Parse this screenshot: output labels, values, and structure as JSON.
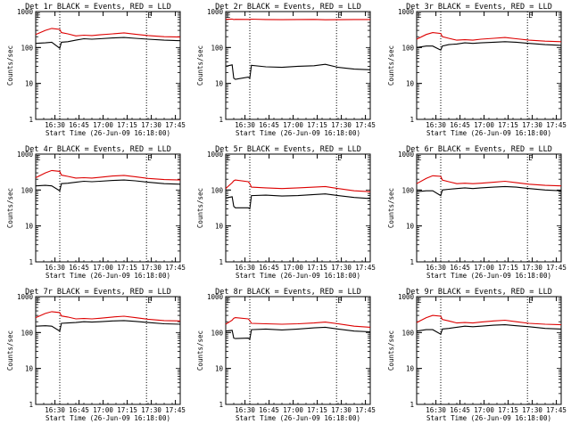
{
  "chart_data": [
    {
      "type": "line",
      "title": "Det 1r BLACK = Events, RED = LLD",
      "xlabel": "Start Time (26-Jun-09 16:18:00)",
      "ylabel": "Counts/sec",
      "x_tick_labels": [
        "16:30",
        "16:45",
        "17:00",
        "17:15",
        "17:30",
        "17:45"
      ],
      "y_tick_labels": [
        "1",
        "10",
        "100",
        "1000"
      ],
      "yscale": "log",
      "ylim": [
        1,
        1000
      ],
      "xlim_minutes_after_start": [
        0,
        90
      ],
      "annotation": "E",
      "event_lines_minutes_after_start": [
        15,
        69
      ],
      "x_minutes": [
        0,
        6,
        10,
        15,
        16,
        20,
        25,
        30,
        35,
        40,
        48,
        55,
        62,
        70,
        80,
        90
      ],
      "series": [
        {
          "name": "BLACK = Events",
          "color": "#000000",
          "values": [
            130,
            135,
            140,
            95,
            140,
            145,
            160,
            175,
            170,
            175,
            185,
            190,
            180,
            170,
            160,
            155
          ]
        },
        {
          "name": "RED = LLD",
          "color": "#dd0000",
          "values": [
            230,
            300,
            340,
            320,
            260,
            240,
            210,
            220,
            215,
            225,
            240,
            255,
            235,
            215,
            200,
            195
          ]
        }
      ]
    },
    {
      "type": "line",
      "title": "Det 2r BLACK = Events, RED = LLD",
      "xlabel": "Start Time (26-Jun-09 16:18:00)",
      "ylabel": "Counts/sec",
      "x_tick_labels": [
        "16:30",
        "16:45",
        "17:00",
        "17:15",
        "17:30",
        "17:45"
      ],
      "y_tick_labels": [
        "1",
        "10",
        "100",
        "1000"
      ],
      "yscale": "log",
      "ylim": [
        1,
        1000
      ],
      "xlim_minutes_after_start": [
        0,
        90
      ],
      "annotation": "E",
      "event_lines_minutes_after_start": [
        15,
        69
      ],
      "x_minutes": [
        0,
        4,
        5,
        6,
        14,
        15,
        16,
        25,
        35,
        45,
        55,
        62,
        70,
        80,
        90
      ],
      "series": [
        {
          "name": "BLACK = Events",
          "color": "#000000",
          "values": [
            30,
            33,
            14,
            13,
            15,
            14,
            32,
            29,
            28,
            30,
            31,
            34,
            28,
            25,
            24
          ]
        },
        {
          "name": "RED = LLD",
          "color": "#dd0000",
          "values": [
            610,
            620,
            600,
            610,
            605,
            600,
            615,
            600,
            595,
            600,
            605,
            590,
            595,
            600,
            600
          ]
        }
      ]
    },
    {
      "type": "line",
      "title": "Det 3r BLACK = Events, RED = LLD",
      "xlabel": "Start Time (26-Jun-09 16:18:00)",
      "ylabel": "Counts/sec",
      "x_tick_labels": [
        "16:30",
        "16:45",
        "17:00",
        "17:15",
        "17:30",
        "17:45"
      ],
      "y_tick_labels": [
        "1",
        "10",
        "100",
        "1000"
      ],
      "yscale": "log",
      "ylim": [
        1,
        1000
      ],
      "xlim_minutes_after_start": [
        0,
        90
      ],
      "annotation": "E",
      "event_lines_minutes_after_start": [
        15,
        69
      ],
      "x_minutes": [
        0,
        6,
        10,
        15,
        16,
        20,
        25,
        30,
        35,
        40,
        48,
        55,
        62,
        70,
        80,
        90
      ],
      "series": [
        {
          "name": "BLACK = Events",
          "color": "#000000",
          "values": [
            100,
            110,
            110,
            85,
            110,
            120,
            125,
            135,
            130,
            135,
            140,
            145,
            140,
            130,
            120,
            115
          ]
        },
        {
          "name": "RED = LLD",
          "color": "#dd0000",
          "values": [
            170,
            230,
            260,
            245,
            200,
            180,
            160,
            165,
            160,
            170,
            180,
            190,
            175,
            160,
            150,
            145
          ]
        }
      ]
    },
    {
      "type": "line",
      "title": "Det 4r BLACK = Events, RED = LLD",
      "xlabel": "Start Time (26-Jun-09 16:18:00)",
      "ylabel": "Counts/sec",
      "x_tick_labels": [
        "16:30",
        "16:45",
        "17:00",
        "17:15",
        "17:30",
        "17:45"
      ],
      "y_tick_labels": [
        "1",
        "10",
        "100",
        "1000"
      ],
      "yscale": "log",
      "ylim": [
        1,
        1000
      ],
      "xlim_minutes_after_start": [
        0,
        90
      ],
      "annotation": "E",
      "event_lines_minutes_after_start": [
        15,
        69
      ],
      "x_minutes": [
        0,
        6,
        10,
        15,
        16,
        20,
        25,
        30,
        35,
        40,
        48,
        55,
        62,
        70,
        80,
        90
      ],
      "series": [
        {
          "name": "BLACK = Events",
          "color": "#000000",
          "values": [
            130,
            135,
            130,
            95,
            150,
            155,
            165,
            175,
            170,
            175,
            185,
            190,
            180,
            165,
            150,
            145
          ]
        },
        {
          "name": "RED = LLD",
          "color": "#dd0000",
          "values": [
            220,
            300,
            350,
            330,
            260,
            240,
            215,
            220,
            215,
            225,
            245,
            255,
            235,
            210,
            195,
            190
          ]
        }
      ]
    },
    {
      "type": "line",
      "title": "Det 5r BLACK = Events, RED = LLD",
      "xlabel": "Start Time (26-Jun-09 16:18:00)",
      "ylabel": "Counts/sec",
      "x_tick_labels": [
        "16:30",
        "16:45",
        "17:00",
        "17:15",
        "17:30",
        "17:45"
      ],
      "y_tick_labels": [
        "1",
        "10",
        "100",
        "1000"
      ],
      "yscale": "log",
      "ylim": [
        1,
        1000
      ],
      "xlim_minutes_after_start": [
        0,
        90
      ],
      "annotation": "E",
      "event_lines_minutes_after_start": [
        15,
        69
      ],
      "x_minutes": [
        0,
        4,
        5,
        6,
        14,
        15,
        16,
        25,
        35,
        45,
        55,
        62,
        70,
        80,
        90
      ],
      "series": [
        {
          "name": "BLACK = Events",
          "color": "#000000",
          "values": [
            60,
            65,
            35,
            32,
            32,
            30,
            70,
            72,
            68,
            70,
            75,
            78,
            70,
            62,
            58
          ]
        },
        {
          "name": "RED = LLD",
          "color": "#dd0000",
          "values": [
            110,
            160,
            180,
            190,
            170,
            150,
            120,
            115,
            110,
            115,
            120,
            125,
            110,
            95,
            90
          ]
        }
      ]
    },
    {
      "type": "line",
      "title": "Det 6r BLACK = Events, RED = LLD",
      "xlabel": "Start Time (26-Jun-09 16:18:00)",
      "ylabel": "Counts/sec",
      "x_tick_labels": [
        "16:30",
        "16:45",
        "17:00",
        "17:15",
        "17:30",
        "17:45"
      ],
      "y_tick_labels": [
        "1",
        "10",
        "100",
        "1000"
      ],
      "yscale": "log",
      "ylim": [
        1,
        1000
      ],
      "xlim_minutes_after_start": [
        0,
        90
      ],
      "annotation": "E",
      "event_lines_minutes_after_start": [
        15,
        69
      ],
      "x_minutes": [
        0,
        6,
        10,
        15,
        16,
        20,
        25,
        30,
        35,
        40,
        48,
        55,
        62,
        70,
        80,
        90
      ],
      "series": [
        {
          "name": "BLACK = Events",
          "color": "#000000",
          "values": [
            90,
            95,
            95,
            70,
            100,
            105,
            110,
            115,
            110,
            115,
            120,
            125,
            120,
            110,
            100,
            95
          ]
        },
        {
          "name": "RED = LLD",
          "color": "#dd0000",
          "values": [
            150,
            210,
            250,
            240,
            190,
            170,
            150,
            155,
            150,
            155,
            165,
            175,
            160,
            145,
            135,
            130
          ]
        }
      ]
    },
    {
      "type": "line",
      "title": "Det 7r BLACK = Events, RED = LLD",
      "xlabel": "Start Time (26-Jun-09 16:18:00)",
      "ylabel": "Counts/sec",
      "x_tick_labels": [
        "16:30",
        "16:45",
        "17:00",
        "17:15",
        "17:30",
        "17:45"
      ],
      "y_tick_labels": [
        "1",
        "10",
        "100",
        "1000"
      ],
      "yscale": "log",
      "ylim": [
        1,
        1000
      ],
      "xlim_minutes_after_start": [
        0,
        90
      ],
      "annotation": "E",
      "event_lines_minutes_after_start": [
        15,
        69
      ],
      "x_minutes": [
        0,
        6,
        10,
        15,
        16,
        20,
        25,
        30,
        35,
        40,
        48,
        55,
        62,
        70,
        80,
        90
      ],
      "series": [
        {
          "name": "BLACK = Events",
          "color": "#000000",
          "values": [
            150,
            155,
            150,
            110,
            180,
            185,
            190,
            200,
            195,
            200,
            210,
            215,
            205,
            190,
            175,
            170
          ]
        },
        {
          "name": "RED = LLD",
          "color": "#dd0000",
          "values": [
            260,
            340,
            380,
            360,
            290,
            270,
            240,
            245,
            240,
            250,
            270,
            285,
            260,
            235,
            215,
            210
          ]
        }
      ]
    },
    {
      "type": "line",
      "title": "Det 8r BLACK = Events, RED = LLD",
      "xlabel": "Start Time (26-Jun-09 16:18:00)",
      "ylabel": "Counts/sec",
      "x_tick_labels": [
        "16:30",
        "16:45",
        "17:00",
        "17:15",
        "17:30",
        "17:45"
      ],
      "y_tick_labels": [
        "1",
        "10",
        "100",
        "1000"
      ],
      "yscale": "log",
      "ylim": [
        1,
        1000
      ],
      "xlim_minutes_after_start": [
        0,
        90
      ],
      "annotation": "E",
      "event_lines_minutes_after_start": [
        15,
        69
      ],
      "x_minutes": [
        0,
        4,
        5,
        6,
        14,
        15,
        16,
        25,
        35,
        45,
        55,
        62,
        70,
        80,
        90
      ],
      "series": [
        {
          "name": "BLACK = Events",
          "color": "#000000",
          "values": [
            110,
            115,
            70,
            68,
            70,
            65,
            120,
            125,
            118,
            125,
            135,
            140,
            125,
            110,
            105
          ]
        },
        {
          "name": "RED = LLD",
          "color": "#dd0000",
          "values": [
            170,
            220,
            250,
            260,
            240,
            215,
            180,
            175,
            170,
            175,
            185,
            195,
            175,
            150,
            140
          ]
        }
      ]
    },
    {
      "type": "line",
      "title": "Det 9r BLACK = Events, RED = LLD",
      "xlabel": "Start Time (26-Jun-09 16:18:00)",
      "ylabel": "Counts/sec",
      "x_tick_labels": [
        "16:30",
        "16:45",
        "17:00",
        "17:15",
        "17:30",
        "17:45"
      ],
      "y_tick_labels": [
        "1",
        "10",
        "100",
        "1000"
      ],
      "yscale": "log",
      "ylim": [
        1,
        1000
      ],
      "xlim_minutes_after_start": [
        0,
        90
      ],
      "annotation": "E",
      "event_lines_minutes_after_start": [
        15,
        69
      ],
      "x_minutes": [
        0,
        6,
        10,
        15,
        16,
        20,
        25,
        30,
        35,
        40,
        48,
        55,
        62,
        70,
        80,
        90
      ],
      "series": [
        {
          "name": "BLACK = Events",
          "color": "#000000",
          "values": [
            110,
            120,
            120,
            90,
            125,
            130,
            140,
            150,
            145,
            150,
            160,
            165,
            155,
            145,
            130,
            125
          ]
        },
        {
          "name": "RED = LLD",
          "color": "#dd0000",
          "values": [
            190,
            260,
            300,
            285,
            230,
            210,
            185,
            190,
            185,
            195,
            210,
            220,
            200,
            180,
            170,
            165
          ]
        }
      ]
    }
  ]
}
